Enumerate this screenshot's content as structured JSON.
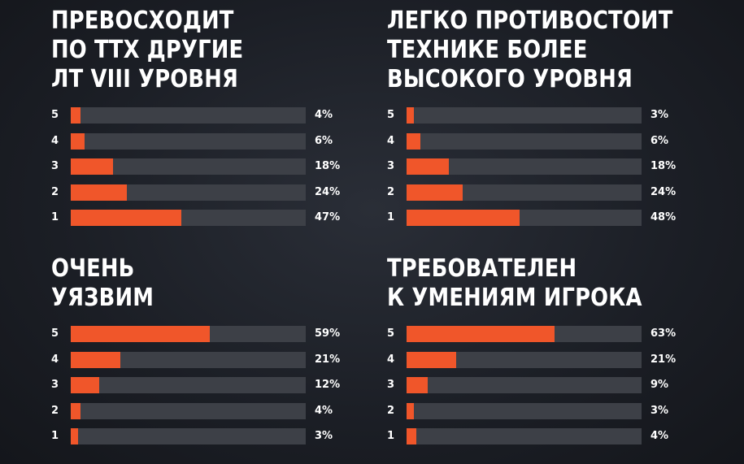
{
  "accent_color": "#f0562a",
  "track_color": "#3d4047",
  "chart_data": [
    {
      "type": "bar",
      "title": "ПРЕВОСХОДИТ ПО ТТХ ДРУГИЕ ЛТ VIII УРОВНЯ",
      "title_lines": [
        "ПРЕВОСХОДИТ",
        "ПО ТТХ ДРУГИЕ",
        "ЛТ VIII УРОВНЯ"
      ],
      "orientation": "horizontal",
      "categories": [
        "5",
        "4",
        "3",
        "2",
        "1"
      ],
      "values": [
        4,
        6,
        18,
        24,
        47
      ],
      "value_labels": [
        "4%",
        "6%",
        "18%",
        "24%",
        "47%"
      ],
      "unit": "%",
      "xlim": [
        0,
        100
      ]
    },
    {
      "type": "bar",
      "title": "ЛЕГКО ПРОТИВОСТОИТ ТЕХНИКЕ БОЛЕЕ ВЫСОКОГО УРОВНЯ",
      "title_lines": [
        "ЛЕГКО ПРОТИВОСТОИТ",
        "ТЕХНИКЕ БОЛЕЕ",
        "ВЫСОКОГО УРОВНЯ"
      ],
      "orientation": "horizontal",
      "categories": [
        "5",
        "4",
        "3",
        "2",
        "1"
      ],
      "values": [
        3,
        6,
        18,
        24,
        48
      ],
      "value_labels": [
        "3%",
        "6%",
        "18%",
        "24%",
        "48%"
      ],
      "unit": "%",
      "xlim": [
        0,
        100
      ]
    },
    {
      "type": "bar",
      "title": "ОЧЕНЬ УЯЗВИМ",
      "title_lines": [
        "ОЧЕНЬ",
        "УЯЗВИМ"
      ],
      "orientation": "horizontal",
      "categories": [
        "5",
        "4",
        "3",
        "2",
        "1"
      ],
      "values": [
        59,
        21,
        12,
        4,
        3
      ],
      "value_labels": [
        "59%",
        "21%",
        "12%",
        "4%",
        "3%"
      ],
      "unit": "%",
      "xlim": [
        0,
        100
      ]
    },
    {
      "type": "bar",
      "title": "ТРЕБОВАТЕЛЕН К УМЕНИЯМ ИГРОКА",
      "title_lines": [
        "ТРЕБОВАТЕЛЕН",
        "К УМЕНИЯМ ИГРОКА"
      ],
      "orientation": "horizontal",
      "categories": [
        "5",
        "4",
        "3",
        "2",
        "1"
      ],
      "values": [
        63,
        21,
        9,
        3,
        4
      ],
      "value_labels": [
        "63%",
        "21%",
        "9%",
        "3%",
        "4%"
      ],
      "unit": "%",
      "xlim": [
        0,
        100
      ]
    }
  ]
}
